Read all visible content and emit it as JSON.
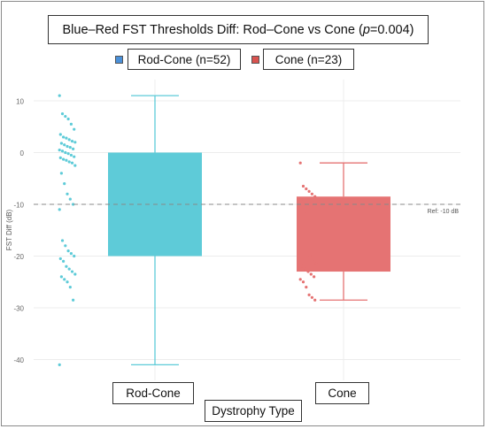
{
  "chart_data": {
    "type": "box",
    "title_prefix": "Blue–Red FST Thresholds Diff: Rod–Cone vs Cone (",
    "title_p_symbol": "p",
    "title_p_value": "=0.004",
    "title_suffix": ")",
    "xlabel": "Dystrophy Type",
    "ylabel": "FST Diff (dB)",
    "ylim": [
      -43,
      13
    ],
    "yticks": [
      10,
      0,
      -10,
      -20,
      -30,
      -40
    ],
    "ytick_labels": [
      "10",
      "0",
      "-10",
      "-20",
      "-30",
      "-40"
    ],
    "grid": true,
    "legend_position": "top-center",
    "reference_line": {
      "y": -10,
      "label": "Ref: -10 dB"
    },
    "categories": [
      "Rod-Cone",
      "Cone"
    ],
    "series": [
      {
        "name": "Rod-Cone (n=52)",
        "category": "Rod-Cone",
        "color": "#5ecbd8",
        "legend_swatch_color": "#4a90d9",
        "box": {
          "whisker_low": -41,
          "q1": -20,
          "q3": 0,
          "whisker_high": 11
        },
        "points": [
          11,
          7.5,
          7,
          6.5,
          5.5,
          4.5,
          3.5,
          3,
          2.8,
          2.5,
          2.2,
          2,
          1.8,
          1.5,
          1.2,
          1,
          0.7,
          0.5,
          0.3,
          0,
          -0.2,
          -0.5,
          -0.8,
          -1,
          -1.3,
          -1.5,
          -1.8,
          -2,
          -2.5,
          -4,
          -6,
          -8,
          -9,
          -10,
          -11,
          -17,
          -18,
          -19,
          -19.5,
          -20,
          -20.5,
          -21,
          -22,
          -22.5,
          -23,
          -23.5,
          -24,
          -24.5,
          -25,
          -26,
          -28.5,
          -41
        ]
      },
      {
        "name": "Cone (n=23)",
        "category": "Cone",
        "color": "#e57373",
        "legend_swatch_color": "#d9534f",
        "box": {
          "whisker_low": -28.5,
          "q1": -23,
          "q3": -8.5,
          "whisker_high": -2
        },
        "points": [
          -2,
          -6.5,
          -7,
          -7.5,
          -8,
          -8.5,
          -9,
          -11,
          -11.5,
          -20,
          -21,
          -21.5,
          -22,
          -22.5,
          -23,
          -23.5,
          -24,
          -24.5,
          -25,
          -26,
          -27.5,
          -28,
          -28.5
        ]
      }
    ]
  }
}
